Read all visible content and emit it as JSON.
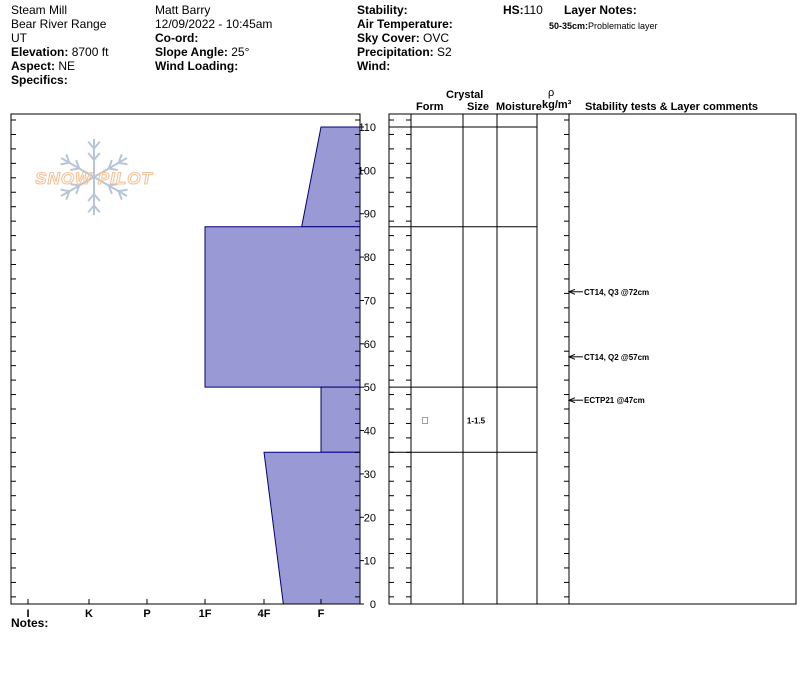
{
  "header": {
    "location": "Steam Mill",
    "range": "Bear River Range",
    "state": "UT",
    "elevation_label": "Elevation:",
    "elevation_value": "8700 ft",
    "aspect_label": "Aspect:",
    "aspect_value": "NE",
    "specifics_label": "Specifics:",
    "observer": "Matt Barry",
    "datetime": "12/09/2022 - 10:45am",
    "coord_label": "Co-ord:",
    "slope_label": "Slope Angle:",
    "slope_value": "25°",
    "wind_loading_label": "Wind Loading:",
    "stability_label": "Stability:",
    "air_temp_label": "Air Temperature:",
    "sky_label": "Sky Cover:",
    "sky_value": "OVC",
    "precip_label": "Precipitation:",
    "precip_value": "S2",
    "wind_label": "Wind:",
    "hs_label": "HS:",
    "hs_value": "110",
    "layer_notes_label": "Layer Notes:",
    "layer_note_range": "50-35cm:",
    "layer_note_text": "Problematic layer"
  },
  "columns": {
    "crystal": "Crystal",
    "form": "Form",
    "size": "Size",
    "moisture": "Moisture",
    "rho": "ρ",
    "density_unit": "kg/m³",
    "stability": "Stability tests & Layer comments"
  },
  "notes_label": "Notes:",
  "logo_text": "SNOW PILOT",
  "colors": {
    "profile_fill": "#9999d6",
    "profile_stroke": "#00007a",
    "logo": "#f2c49c",
    "logo_flake": "#b7c6d6"
  },
  "chart_data": {
    "type": "area",
    "title": "",
    "xlabel": "",
    "ylabel": "",
    "hardness_scale": [
      "I",
      "K",
      "P",
      "1F",
      "4F",
      "F"
    ],
    "depth_ticks": [
      0,
      10,
      20,
      30,
      40,
      50,
      60,
      70,
      80,
      90,
      100,
      110
    ],
    "ylim": [
      0,
      110
    ],
    "hardness_profile": [
      {
        "top": 110,
        "bottom": 87,
        "hardness_top": "F",
        "hardness_bottom": "F-"
      },
      {
        "top": 87,
        "bottom": 50,
        "hardness_top": "1F",
        "hardness_bottom": "1F"
      },
      {
        "top": 50,
        "bottom": 35,
        "hardness_top": "F",
        "hardness_bottom": "F"
      },
      {
        "top": 35,
        "bottom": 0,
        "hardness_top": "4F",
        "hardness_bottom": "4F+"
      }
    ],
    "layer_boundaries": [
      110,
      87,
      50,
      35
    ],
    "layers": [
      {
        "top": 50,
        "bottom": 35,
        "form": "□",
        "size": "1-1.5"
      }
    ],
    "stability_tests": [
      {
        "depth": 72,
        "label": "CT14, Q3 @72cm"
      },
      {
        "depth": 57,
        "label": "CT14, Q2 @57cm"
      },
      {
        "depth": 47,
        "label": "ECTP21 @47cm"
      }
    ]
  }
}
